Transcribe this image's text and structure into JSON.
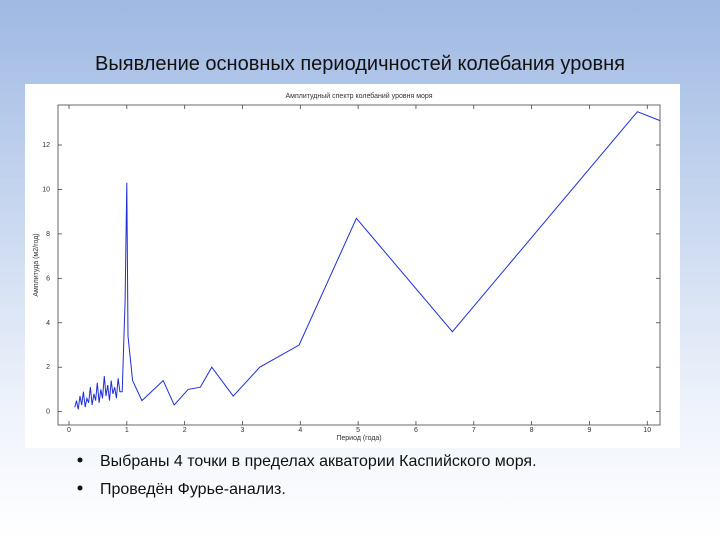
{
  "title": "Выявление основных периодичностей колебания уровня",
  "bullets": [
    "Выбраны 4 точки в пределах акватории Каспийского моря.",
    "Проведён Фурье-анализ."
  ],
  "chart_data": {
    "type": "line",
    "title": "Амплитудный спектр колебаний уровня моря",
    "x_label": "Период (года)",
    "y_label": "Амплитуда (м2/год)",
    "xlim": [
      -0.19,
      10.22
    ],
    "ylim": [
      -0.6,
      13.8
    ],
    "xticks": [
      0,
      1,
      2,
      3,
      4,
      5,
      6,
      7,
      8,
      9,
      10
    ],
    "yticks": [
      0,
      2,
      4,
      6,
      8,
      10,
      12
    ],
    "series": [
      {
        "color": "#1f2fd6",
        "x": [
          0.1,
          0.13,
          0.16,
          0.19,
          0.22,
          0.25,
          0.28,
          0.31,
          0.34,
          0.37,
          0.4,
          0.43,
          0.46,
          0.49,
          0.52,
          0.55,
          0.58,
          0.61,
          0.64,
          0.67,
          0.7,
          0.73,
          0.76,
          0.79,
          0.82,
          0.85,
          0.88,
          0.92,
          0.97,
          1.0,
          1.02,
          1.1,
          1.26,
          1.63,
          1.82,
          2.06,
          2.27,
          2.47,
          2.84,
          3.3,
          3.98,
          4.97,
          6.63,
          9.83,
          10.22
        ],
        "values": [
          0.2,
          0.5,
          0.1,
          0.7,
          0.3,
          0.9,
          0.2,
          0.6,
          0.4,
          1.1,
          0.3,
          0.8,
          0.5,
          1.3,
          0.4,
          1.0,
          0.6,
          1.6,
          0.7,
          1.2,
          0.5,
          1.4,
          0.8,
          1.1,
          0.6,
          1.5,
          0.9,
          0.9,
          5.0,
          10.3,
          3.4,
          1.4,
          0.5,
          1.4,
          0.3,
          1.0,
          1.1,
          2.0,
          0.7,
          2.0,
          3.0,
          8.7,
          3.6,
          13.5,
          13.1
        ]
      }
    ]
  }
}
